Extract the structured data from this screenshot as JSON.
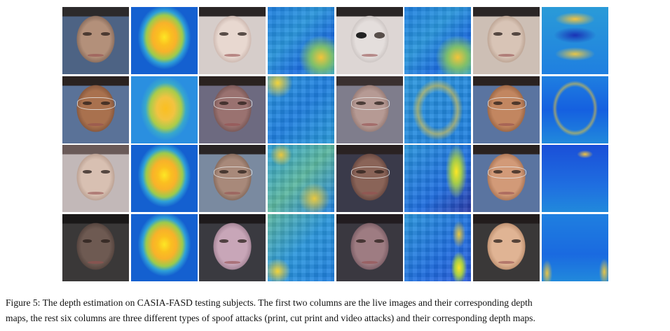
{
  "figure": {
    "label": "Figure 5:",
    "caption_line1": "The depth estimation on CASIA-FASD testing subjects. The first two columns are the live images and their corresponding depth",
    "caption_line2": "maps, the rest six columns are three different types of spoof attacks (print, cut print and video attacks) and their corresponding depth maps.",
    "columns": [
      "Live image",
      "Live depth map",
      "Print attack image",
      "Print attack depth map",
      "Cut print attack image",
      "Cut print attack depth map",
      "Video attack image",
      "Video attack depth map"
    ],
    "rows": 4,
    "subjects": [
      {
        "row": 1,
        "glasses": false
      },
      {
        "row": 2,
        "glasses": true
      },
      {
        "row": 3,
        "glasses": false
      },
      {
        "row": 4,
        "glasses": false
      }
    ],
    "colormap": {
      "low": "#1f1fa8",
      "mid": "#2ea0d8",
      "high": "#fde725",
      "accent": "#f8b22a"
    }
  }
}
